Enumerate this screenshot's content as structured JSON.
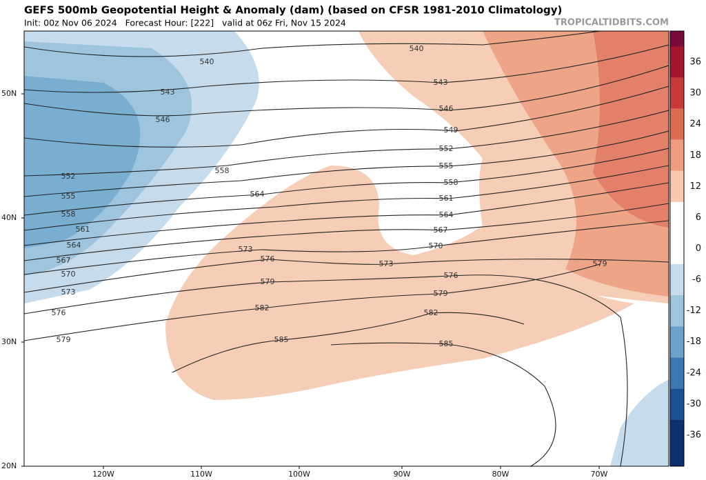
{
  "header": {
    "title": "GEFS 500mb Geopotential Height & Anomaly (dam) (based on CFSR 1981-2010 Climatology)",
    "subtitle": "Init: 00z Nov 06 2024   Forecast Hour: [222]   valid at 06z Fri, Nov 15 2024",
    "watermark": "TROPICALTIDBITS.COM"
  },
  "map": {
    "lat_labels": [
      "50N",
      "40N",
      "30N",
      "20N"
    ],
    "lon_labels": [
      "120W",
      "110W",
      "100W",
      "90W",
      "80W",
      "70W"
    ],
    "contour_labels": [
      540,
      543,
      546,
      552,
      555,
      558,
      561,
      564,
      567,
      570,
      573,
      576,
      579,
      558,
      564,
      573,
      576,
      579,
      582,
      585,
      540,
      543,
      546,
      549,
      552,
      555,
      558,
      561,
      564,
      567,
      570,
      573,
      576,
      579,
      582,
      585,
      579
    ]
  },
  "colorbar": {
    "ticks": [
      36,
      30,
      24,
      18,
      12,
      6,
      0,
      -6,
      -12,
      -18,
      -24,
      -30,
      -36
    ]
  }
}
